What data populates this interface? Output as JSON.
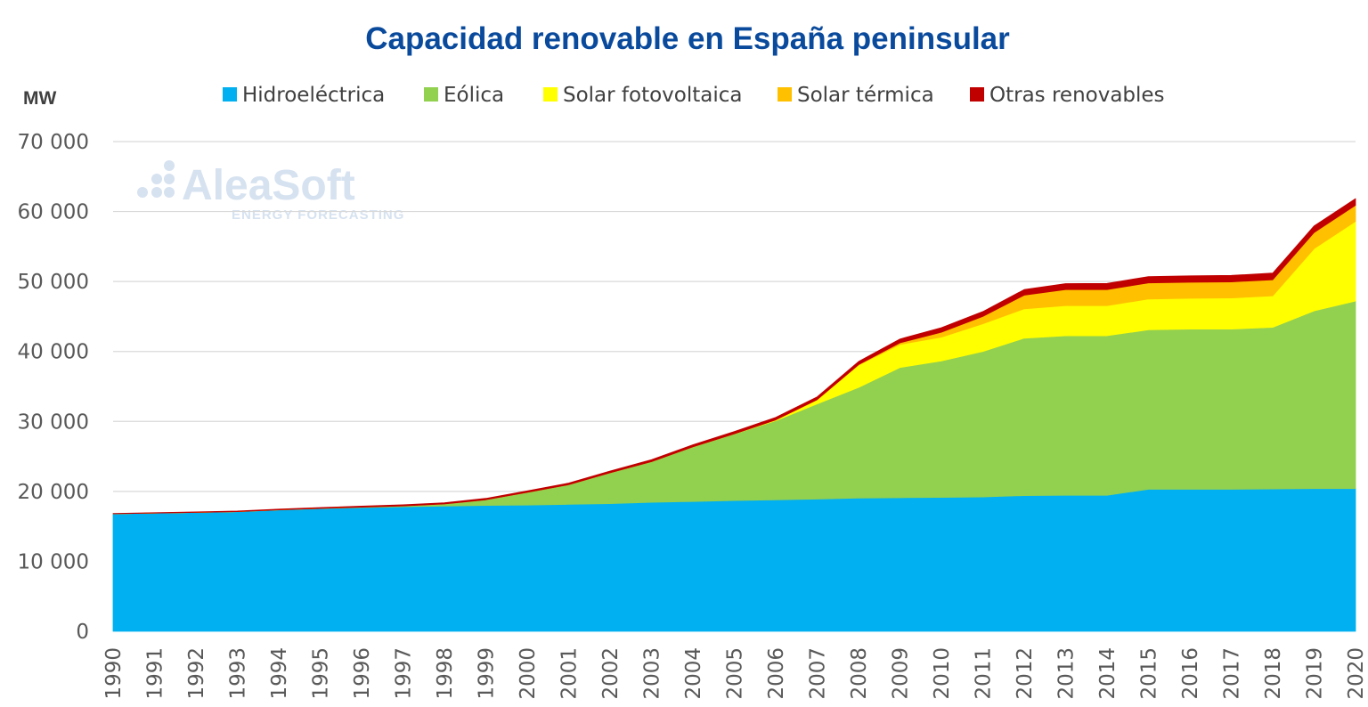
{
  "chart_data": {
    "type": "area",
    "stacked": true,
    "title": "Capacidad renovable en España peninsular",
    "ylabel": "MW",
    "ylim": [
      0,
      70000
    ],
    "yticks": [
      0,
      10000,
      20000,
      30000,
      40000,
      50000,
      60000,
      70000
    ],
    "ytick_labels": [
      "0",
      "10 000",
      "20 000",
      "30 000",
      "40 000",
      "50 000",
      "60 000",
      "70 000"
    ],
    "grid": true,
    "legend_position": "top",
    "categories": [
      "1990",
      "1991",
      "1992",
      "1993",
      "1994",
      "1995",
      "1996",
      "1997",
      "1998",
      "1999",
      "2000",
      "2001",
      "2002",
      "2003",
      "2004",
      "2005",
      "2006",
      "2007",
      "2008",
      "2009",
      "2010",
      "2011",
      "2012",
      "2013",
      "2014",
      "2015",
      "2016",
      "2017",
      "2018",
      "2019",
      "2020"
    ],
    "series": [
      {
        "name": "Hidroeléctrica",
        "color": "#00b0f0",
        "values": [
          16800,
          16900,
          17000,
          17100,
          17350,
          17550,
          17700,
          17800,
          17900,
          18000,
          18050,
          18150,
          18250,
          18450,
          18550,
          18700,
          18800,
          18900,
          19050,
          19100,
          19150,
          19200,
          19400,
          19450,
          19450,
          20300,
          20300,
          20300,
          20350,
          20400,
          20400
        ]
      },
      {
        "name": "Eólica",
        "color": "#92d050",
        "values": [
          0,
          0,
          0,
          0,
          10,
          20,
          50,
          120,
          300,
          800,
          1800,
          2800,
          4400,
          5800,
          7800,
          9500,
          11300,
          13600,
          15800,
          18600,
          19500,
          20800,
          22500,
          22800,
          22800,
          22800,
          22900,
          22900,
          23100,
          25400,
          26800
        ]
      },
      {
        "name": "Solar fotovoltaica",
        "color": "#ffff00",
        "values": [
          0,
          0,
          0,
          0,
          0,
          0,
          0,
          0,
          0,
          0,
          0,
          0,
          0,
          0,
          10,
          30,
          120,
          600,
          3200,
          3300,
          3400,
          3950,
          4200,
          4300,
          4300,
          4400,
          4400,
          4450,
          4500,
          8900,
          11400
        ]
      },
      {
        "name": "Solar térmica",
        "color": "#ffc000",
        "values": [
          0,
          0,
          0,
          0,
          0,
          0,
          0,
          0,
          0,
          0,
          0,
          0,
          0,
          0,
          0,
          0,
          0,
          10,
          60,
          230,
          700,
          1050,
          1950,
          2300,
          2300,
          2300,
          2300,
          2300,
          2300,
          2300,
          2300
        ]
      },
      {
        "name": "Otras renovables",
        "color": "#c00000",
        "values": [
          50,
          60,
          70,
          90,
          100,
          120,
          140,
          160,
          180,
          200,
          220,
          240,
          260,
          280,
          300,
          330,
          360,
          400,
          450,
          550,
          650,
          700,
          800,
          850,
          880,
          900,
          910,
          920,
          950,
          950,
          950
        ]
      }
    ]
  },
  "watermark": {
    "main": "AleaSoft",
    "sub": "ENERGY FORECASTING"
  }
}
